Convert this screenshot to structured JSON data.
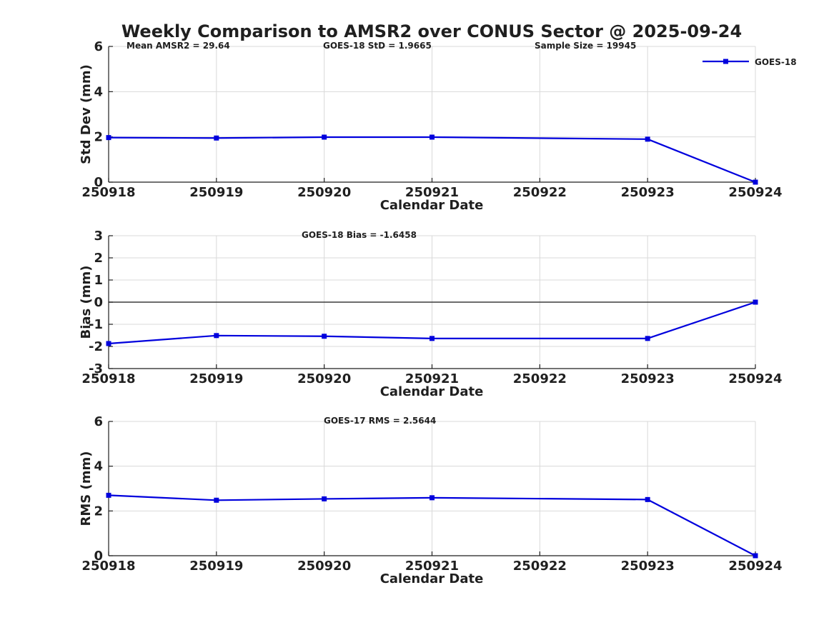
{
  "title": "Weekly Comparison to AMSR2 over CONUS Sector @ 2025-09-24",
  "colors": {
    "line": "#0000dd",
    "axis": "#1f1f1f",
    "grid": "#d9d9d9",
    "zero_line": "#3c3c3c",
    "text": "#1f1f1f",
    "background": "#ffffff"
  },
  "legend": {
    "label": "GOES-18",
    "marker": "square",
    "position": "top-right-outside"
  },
  "chart_data": [
    {
      "type": "line",
      "id": "std-dev",
      "ylabel": "Std Dev (mm)",
      "xlabel": "Calendar Date",
      "ylim": [
        0,
        6
      ],
      "yticks": [
        0,
        2,
        4,
        6
      ],
      "categories": [
        "250918",
        "250919",
        "250920",
        "250921",
        "250922",
        "250923",
        "250924"
      ],
      "grid": true,
      "zero_line": false,
      "annotations": [
        "Mean AMSR2 = 29.64",
        "GOES-18 StD = 1.9665",
        "Sample Size = 19945"
      ],
      "legend_visible": true,
      "series": [
        {
          "name": "GOES-18",
          "marker": "square",
          "points": [
            [
              "250918",
              1.97
            ],
            [
              "250919",
              1.95
            ],
            [
              "250920",
              1.99
            ],
            [
              "250921",
              1.99
            ],
            [
              "250923",
              1.9
            ],
            [
              "250924",
              0.0
            ]
          ]
        }
      ]
    },
    {
      "type": "line",
      "id": "bias",
      "ylabel": "Bias (mm)",
      "xlabel": "Calendar Date",
      "ylim": [
        -3,
        3
      ],
      "yticks": [
        -3,
        -2,
        -1,
        0,
        1,
        2,
        3
      ],
      "categories": [
        "250918",
        "250919",
        "250920",
        "250921",
        "250922",
        "250923",
        "250924"
      ],
      "grid": true,
      "zero_line": true,
      "annotations": [
        "GOES-18 Bias  = -1.6458"
      ],
      "legend_visible": false,
      "series": [
        {
          "name": "GOES-18",
          "marker": "square",
          "points": [
            [
              "250918",
              -1.87
            ],
            [
              "250919",
              -1.51
            ],
            [
              "250920",
              -1.54
            ],
            [
              "250921",
              -1.64
            ],
            [
              "250923",
              -1.64
            ],
            [
              "250924",
              0.0
            ]
          ]
        }
      ]
    },
    {
      "type": "line",
      "id": "rms",
      "ylabel": "RMS (mm)",
      "xlabel": "Calendar Date",
      "ylim": [
        0,
        6
      ],
      "yticks": [
        0,
        2,
        4,
        6
      ],
      "categories": [
        "250918",
        "250919",
        "250920",
        "250921",
        "250922",
        "250923",
        "250924"
      ],
      "grid": true,
      "zero_line": false,
      "annotations": [
        "GOES-17 RMS = 2.5644"
      ],
      "legend_visible": false,
      "series": [
        {
          "name": "GOES-18",
          "marker": "square",
          "points": [
            [
              "250918",
              2.7
            ],
            [
              "250919",
              2.48
            ],
            [
              "250920",
              2.54
            ],
            [
              "250921",
              2.59
            ],
            [
              "250923",
              2.51
            ],
            [
              "250924",
              0.0
            ]
          ]
        }
      ]
    }
  ]
}
